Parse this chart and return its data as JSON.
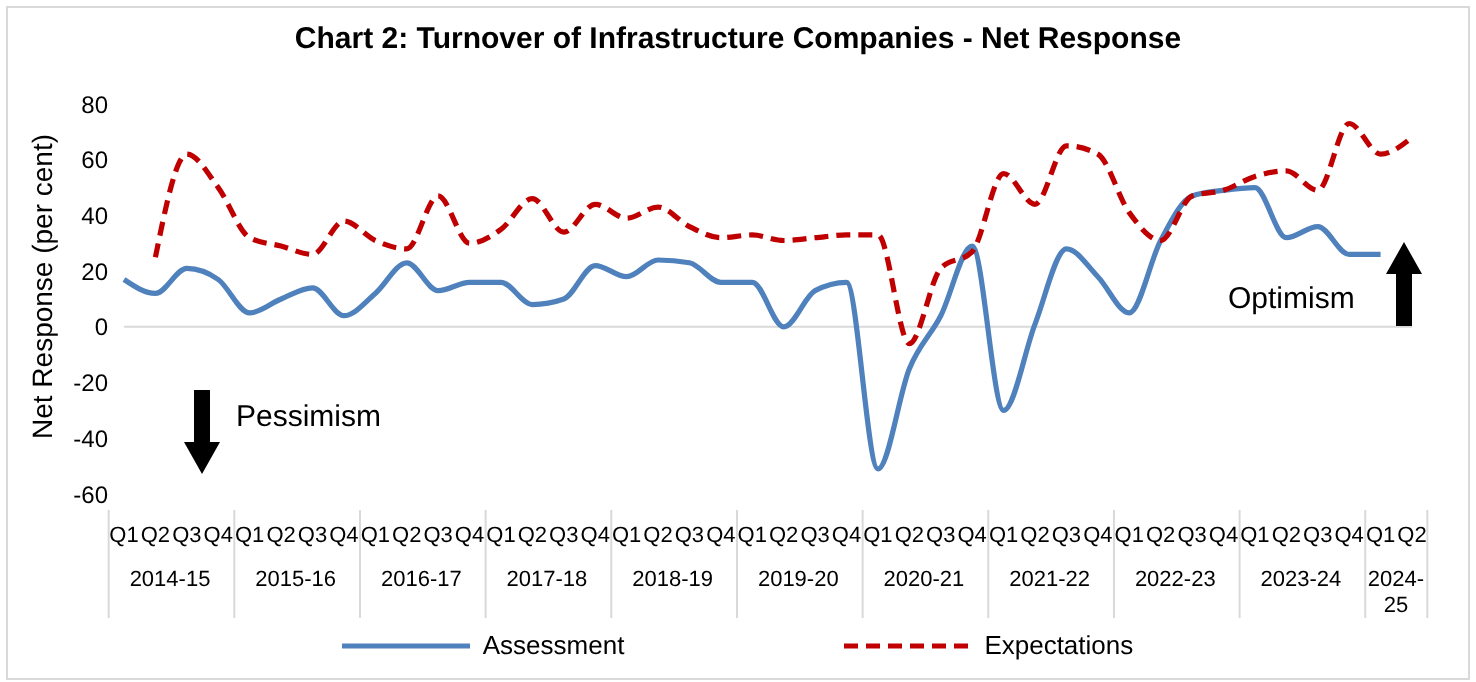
{
  "chart_data": {
    "type": "line",
    "title": "Chart 2: Turnover of Infrastructure Companies - Net Response",
    "ylabel": "Net Response (per cent)",
    "categories": [
      "Q1",
      "Q2",
      "Q3",
      "Q4",
      "Q1",
      "Q2",
      "Q3",
      "Q4",
      "Q1",
      "Q2",
      "Q3",
      "Q4",
      "Q1",
      "Q2",
      "Q3",
      "Q4",
      "Q1",
      "Q2",
      "Q3",
      "Q4",
      "Q1",
      "Q2",
      "Q3",
      "Q4",
      "Q1",
      "Q2",
      "Q3",
      "Q4",
      "Q1",
      "Q2",
      "Q3",
      "Q4",
      "Q1",
      "Q2",
      "Q3",
      "Q4",
      "Q1",
      "Q2",
      "Q3",
      "Q4",
      "Q1",
      "Q2"
    ],
    "series": [
      {
        "name": "Assessment",
        "color": "#4f81bd",
        "line_style": "solid",
        "values": [
          17,
          12,
          21,
          17,
          5,
          10,
          14,
          4,
          12,
          23,
          13,
          16,
          16,
          8,
          10,
          22,
          18,
          24,
          23,
          16,
          16,
          0,
          13,
          16,
          -51,
          -15,
          4,
          29,
          -30,
          1,
          28,
          18,
          5,
          31,
          47,
          49,
          50,
          32,
          36,
          26,
          26,
          null
        ]
      },
      {
        "name": "Expectations",
        "color": "#c00000",
        "line_style": "dashed",
        "values": [
          null,
          25,
          62,
          50,
          32,
          29,
          26,
          38,
          31,
          28,
          47,
          30,
          35,
          46,
          34,
          44,
          39,
          43,
          36,
          32,
          33,
          31,
          32,
          33,
          33,
          -6,
          21,
          27,
          55,
          44,
          65,
          62,
          41,
          31,
          47,
          49,
          54,
          56,
          49,
          73,
          62,
          68
        ]
      }
    ],
    "ylim": [
      -60,
      80
    ],
    "yticks": [
      -60,
      -40,
      -20,
      0,
      20,
      40,
      60,
      80
    ],
    "grid": false,
    "legend": "bottom",
    "ref_lines": [
      {
        "axis": "y",
        "value": 0,
        "color": "#d9d9d9"
      }
    ],
    "annotations": [
      "2014-15",
      "2015-16",
      "2016-17",
      "2017-18",
      "2018-19",
      "2019-20",
      "2020-21",
      "2021-22",
      "2022-23",
      "2023-24",
      "2024-25",
      "Pessimism",
      "Optimism"
    ]
  }
}
